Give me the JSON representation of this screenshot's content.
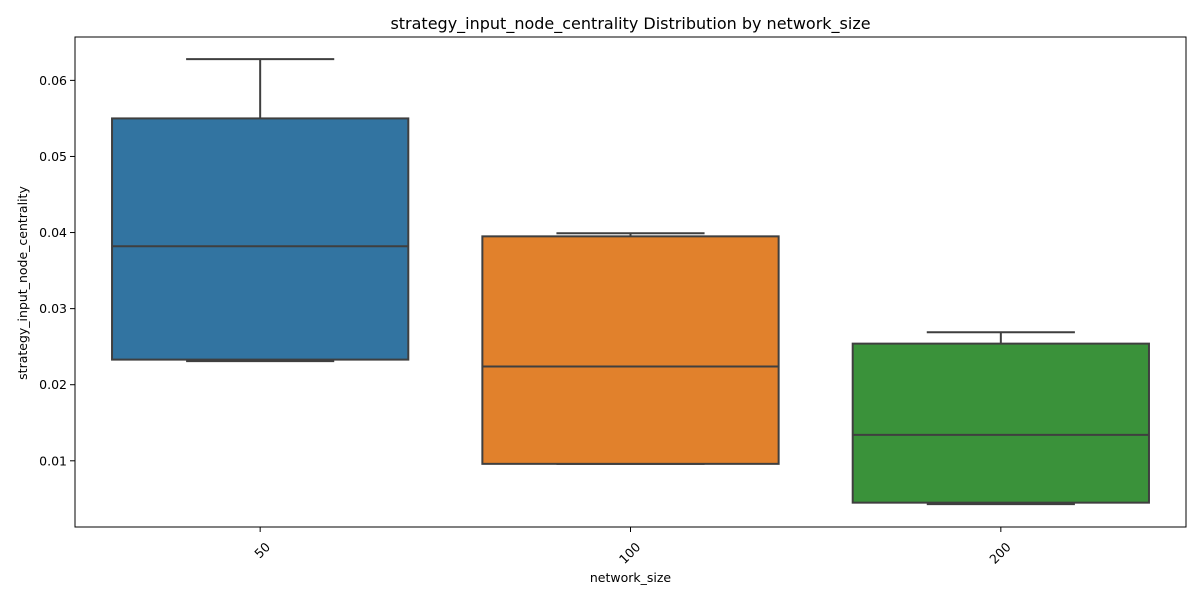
{
  "chart_data": {
    "type": "box",
    "title": "strategy_input_node_centrality Distribution by network_size",
    "xlabel": "network_size",
    "ylabel": "strategy_input_node_centrality",
    "categories": [
      "50",
      "100",
      "200"
    ],
    "boxes": [
      {
        "category": "50",
        "color": "#3274a1",
        "whisker_low": 0.0231,
        "q1": 0.0233,
        "median": 0.0382,
        "q3": 0.055,
        "whisker_high": 0.0628
      },
      {
        "category": "100",
        "color": "#e1812c",
        "whisker_low": 0.0096,
        "q1": 0.0096,
        "median": 0.0224,
        "q3": 0.0395,
        "whisker_high": 0.0399
      },
      {
        "category": "200",
        "color": "#3a923a",
        "whisker_low": 0.0043,
        "q1": 0.0045,
        "median": 0.0134,
        "q3": 0.0254,
        "whisker_high": 0.0269
      }
    ],
    "ylim": [
      0.0013,
      0.0657
    ],
    "yticks": [
      0.01,
      0.02,
      0.03,
      0.04,
      0.05,
      0.06
    ],
    "ytick_labels": [
      "0.01",
      "0.02",
      "0.03",
      "0.04",
      "0.05",
      "0.06"
    ],
    "grid": false,
    "legend": "none",
    "xtick_rotation": 45
  }
}
